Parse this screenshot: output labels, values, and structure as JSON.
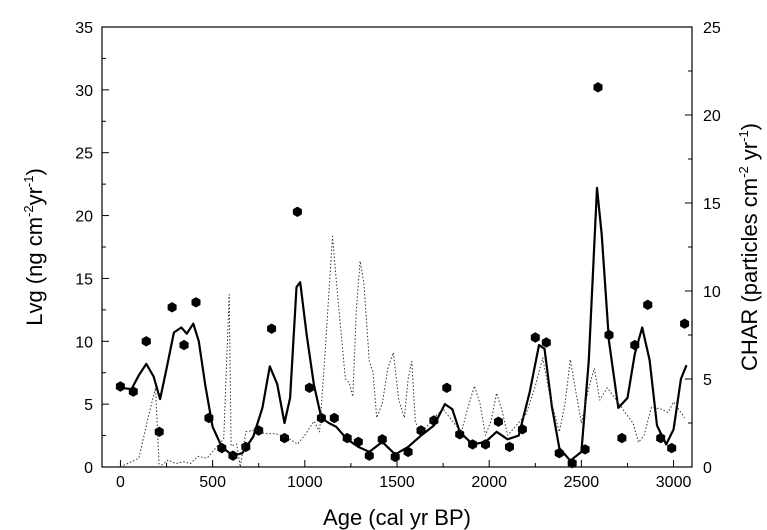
{
  "chart_data": {
    "type": "line",
    "xlabel": "Age (cal yr BP)",
    "ylabel_left": {
      "base": "Lvg (ng cm",
      "sup1": "-2",
      "mid": "yr",
      "sup2": "-1",
      "end": ")"
    },
    "ylabel_right": {
      "base": "CHAR (particles cm",
      "sup1": "-2",
      "mid": " yr",
      "sup2": "-1",
      "end": ")"
    },
    "xlim": [
      -100,
      3100
    ],
    "ylim_left": [
      0,
      35
    ],
    "ylim_right": [
      0,
      25
    ],
    "x_ticks": [
      0,
      500,
      1000,
      1500,
      2000,
      2500,
      3000
    ],
    "x_tick_labels": [
      "0",
      "500",
      "1000",
      "1500",
      "2000",
      "2500",
      "3000"
    ],
    "y_left_ticks": [
      0,
      5,
      10,
      15,
      20,
      25,
      30,
      35
    ],
    "y_left_tick_labels": [
      "0",
      "5",
      "10",
      "15",
      "20",
      "25",
      "30",
      "35"
    ],
    "y_right_ticks": [
      0,
      5,
      10,
      15,
      20,
      25
    ],
    "y_right_tick_labels": [
      "0",
      "5",
      "10",
      "15",
      "20",
      "25"
    ],
    "grid": false,
    "series": [
      {
        "style": "markers",
        "axis": "left",
        "color": "#000000",
        "points": [
          [
            0,
            6.4
          ],
          [
            70,
            6.0
          ],
          [
            140,
            10.0
          ],
          [
            210,
            2.8
          ],
          [
            280,
            12.7
          ],
          [
            345,
            9.7
          ],
          [
            410,
            13.1
          ],
          [
            480,
            3.9
          ],
          [
            550,
            1.5
          ],
          [
            610,
            0.9
          ],
          [
            680,
            1.6
          ],
          [
            750,
            2.9
          ],
          [
            820,
            11.0
          ],
          [
            890,
            2.3
          ],
          [
            960,
            20.3
          ],
          [
            1025,
            6.3
          ],
          [
            1090,
            3.9
          ],
          [
            1160,
            3.9
          ],
          [
            1230,
            2.3
          ],
          [
            1290,
            2.0
          ],
          [
            1350,
            0.9
          ],
          [
            1420,
            2.2
          ],
          [
            1490,
            0.8
          ],
          [
            1560,
            1.2
          ],
          [
            1630,
            2.9
          ],
          [
            1700,
            3.7
          ],
          [
            1770,
            6.3
          ],
          [
            1840,
            2.6
          ],
          [
            1910,
            1.8
          ],
          [
            1980,
            1.8
          ],
          [
            2050,
            3.6
          ],
          [
            2110,
            1.6
          ],
          [
            2180,
            3.0
          ],
          [
            2250,
            10.3
          ],
          [
            2310,
            9.9
          ],
          [
            2380,
            1.1
          ],
          [
            2450,
            0.3
          ],
          [
            2520,
            1.4
          ],
          [
            2590,
            30.2
          ],
          [
            2650,
            10.5
          ],
          [
            2720,
            2.3
          ],
          [
            2790,
            9.7
          ],
          [
            2860,
            12.9
          ],
          [
            2930,
            2.3
          ],
          [
            2990,
            1.5
          ],
          [
            3060,
            11.4
          ]
        ]
      },
      {
        "style": "smooth-line",
        "axis": "left",
        "color": "#000000",
        "points": [
          [
            0,
            6.3
          ],
          [
            60,
            6.2
          ],
          [
            100,
            7.3
          ],
          [
            140,
            8.2
          ],
          [
            180,
            7.2
          ],
          [
            215,
            5.4
          ],
          [
            250,
            7.8
          ],
          [
            290,
            10.7
          ],
          [
            330,
            11.1
          ],
          [
            360,
            10.6
          ],
          [
            395,
            11.4
          ],
          [
            425,
            10.0
          ],
          [
            460,
            6.5
          ],
          [
            500,
            3.2
          ],
          [
            550,
            1.6
          ],
          [
            610,
            0.9
          ],
          [
            660,
            1.1
          ],
          [
            720,
            2.4
          ],
          [
            770,
            4.7
          ],
          [
            810,
            8.0
          ],
          [
            850,
            6.6
          ],
          [
            890,
            3.5
          ],
          [
            920,
            5.5
          ],
          [
            955,
            14.3
          ],
          [
            975,
            14.7
          ],
          [
            1010,
            10.5
          ],
          [
            1050,
            6.5
          ],
          [
            1090,
            3.9
          ],
          [
            1130,
            3.5
          ],
          [
            1170,
            3.2
          ],
          [
            1230,
            2.2
          ],
          [
            1290,
            1.6
          ],
          [
            1350,
            1.2
          ],
          [
            1420,
            2.0
          ],
          [
            1490,
            1.0
          ],
          [
            1560,
            1.6
          ],
          [
            1630,
            2.5
          ],
          [
            1700,
            3.3
          ],
          [
            1760,
            5.0
          ],
          [
            1800,
            4.6
          ],
          [
            1840,
            2.8
          ],
          [
            1910,
            1.8
          ],
          [
            1980,
            2.0
          ],
          [
            2040,
            2.8
          ],
          [
            2100,
            2.2
          ],
          [
            2160,
            2.5
          ],
          [
            2220,
            6.0
          ],
          [
            2270,
            9.7
          ],
          [
            2300,
            9.4
          ],
          [
            2340,
            4.8
          ],
          [
            2380,
            1.5
          ],
          [
            2440,
            0.5
          ],
          [
            2500,
            1.2
          ],
          [
            2540,
            8.5
          ],
          [
            2585,
            22.2
          ],
          [
            2610,
            18.5
          ],
          [
            2650,
            10.0
          ],
          [
            2700,
            4.7
          ],
          [
            2750,
            5.5
          ],
          [
            2790,
            9.0
          ],
          [
            2830,
            11.1
          ],
          [
            2870,
            8.5
          ],
          [
            2910,
            3.3
          ],
          [
            2960,
            1.8
          ],
          [
            3000,
            3.0
          ],
          [
            3040,
            7.0
          ],
          [
            3070,
            8.1
          ]
        ]
      },
      {
        "style": "dotted-line",
        "axis": "right",
        "color": "#333333",
        "points": [
          [
            0,
            0.0
          ],
          [
            100,
            0.5
          ],
          [
            150,
            2.8
          ],
          [
            190,
            4.5
          ],
          [
            210,
            0.0
          ],
          [
            260,
            0.4
          ],
          [
            300,
            0.2
          ],
          [
            340,
            0.3
          ],
          [
            380,
            0.2
          ],
          [
            420,
            0.6
          ],
          [
            470,
            0.5
          ],
          [
            510,
            1.0
          ],
          [
            560,
            1.6
          ],
          [
            590,
            9.8
          ],
          [
            600,
            1.2
          ],
          [
            630,
            1.3
          ],
          [
            650,
            0.0
          ],
          [
            680,
            2.0
          ],
          [
            730,
            2.1
          ],
          [
            780,
            1.9
          ],
          [
            840,
            1.9
          ],
          [
            900,
            1.7
          ],
          [
            960,
            1.3
          ],
          [
            1000,
            1.8
          ],
          [
            1050,
            2.6
          ],
          [
            1080,
            2.0
          ],
          [
            1110,
            6.5
          ],
          [
            1150,
            13.1
          ],
          [
            1180,
            9.5
          ],
          [
            1220,
            5.0
          ],
          [
            1240,
            4.8
          ],
          [
            1260,
            4.0
          ],
          [
            1280,
            9.0
          ],
          [
            1300,
            11.7
          ],
          [
            1320,
            10.5
          ],
          [
            1350,
            6.0
          ],
          [
            1370,
            5.4
          ],
          [
            1390,
            2.8
          ],
          [
            1420,
            3.6
          ],
          [
            1450,
            5.6
          ],
          [
            1480,
            6.5
          ],
          [
            1510,
            3.8
          ],
          [
            1540,
            2.8
          ],
          [
            1560,
            5.0
          ],
          [
            1580,
            6.0
          ],
          [
            1600,
            2.5
          ],
          [
            1640,
            2.0
          ],
          [
            1700,
            2.8
          ],
          [
            1750,
            3.3
          ],
          [
            1800,
            2.6
          ],
          [
            1850,
            2.0
          ],
          [
            1880,
            3.2
          ],
          [
            1920,
            4.6
          ],
          [
            1950,
            3.6
          ],
          [
            1980,
            1.8
          ],
          [
            2010,
            2.6
          ],
          [
            2040,
            4.2
          ],
          [
            2070,
            3.2
          ],
          [
            2100,
            1.8
          ],
          [
            2150,
            2.4
          ],
          [
            2200,
            3.0
          ],
          [
            2250,
            4.6
          ],
          [
            2290,
            6.2
          ],
          [
            2330,
            4.0
          ],
          [
            2380,
            2.0
          ],
          [
            2410,
            3.5
          ],
          [
            2440,
            6.1
          ],
          [
            2470,
            4.3
          ],
          [
            2500,
            2.5
          ],
          [
            2540,
            4.5
          ],
          [
            2570,
            5.6
          ],
          [
            2600,
            3.8
          ],
          [
            2640,
            4.5
          ],
          [
            2690,
            3.8
          ],
          [
            2730,
            3.2
          ],
          [
            2780,
            2.5
          ],
          [
            2810,
            1.4
          ],
          [
            2840,
            1.8
          ],
          [
            2880,
            3.4
          ],
          [
            2930,
            3.3
          ],
          [
            2970,
            3.1
          ],
          [
            3000,
            3.7
          ],
          [
            3060,
            2.8
          ]
        ]
      }
    ]
  }
}
